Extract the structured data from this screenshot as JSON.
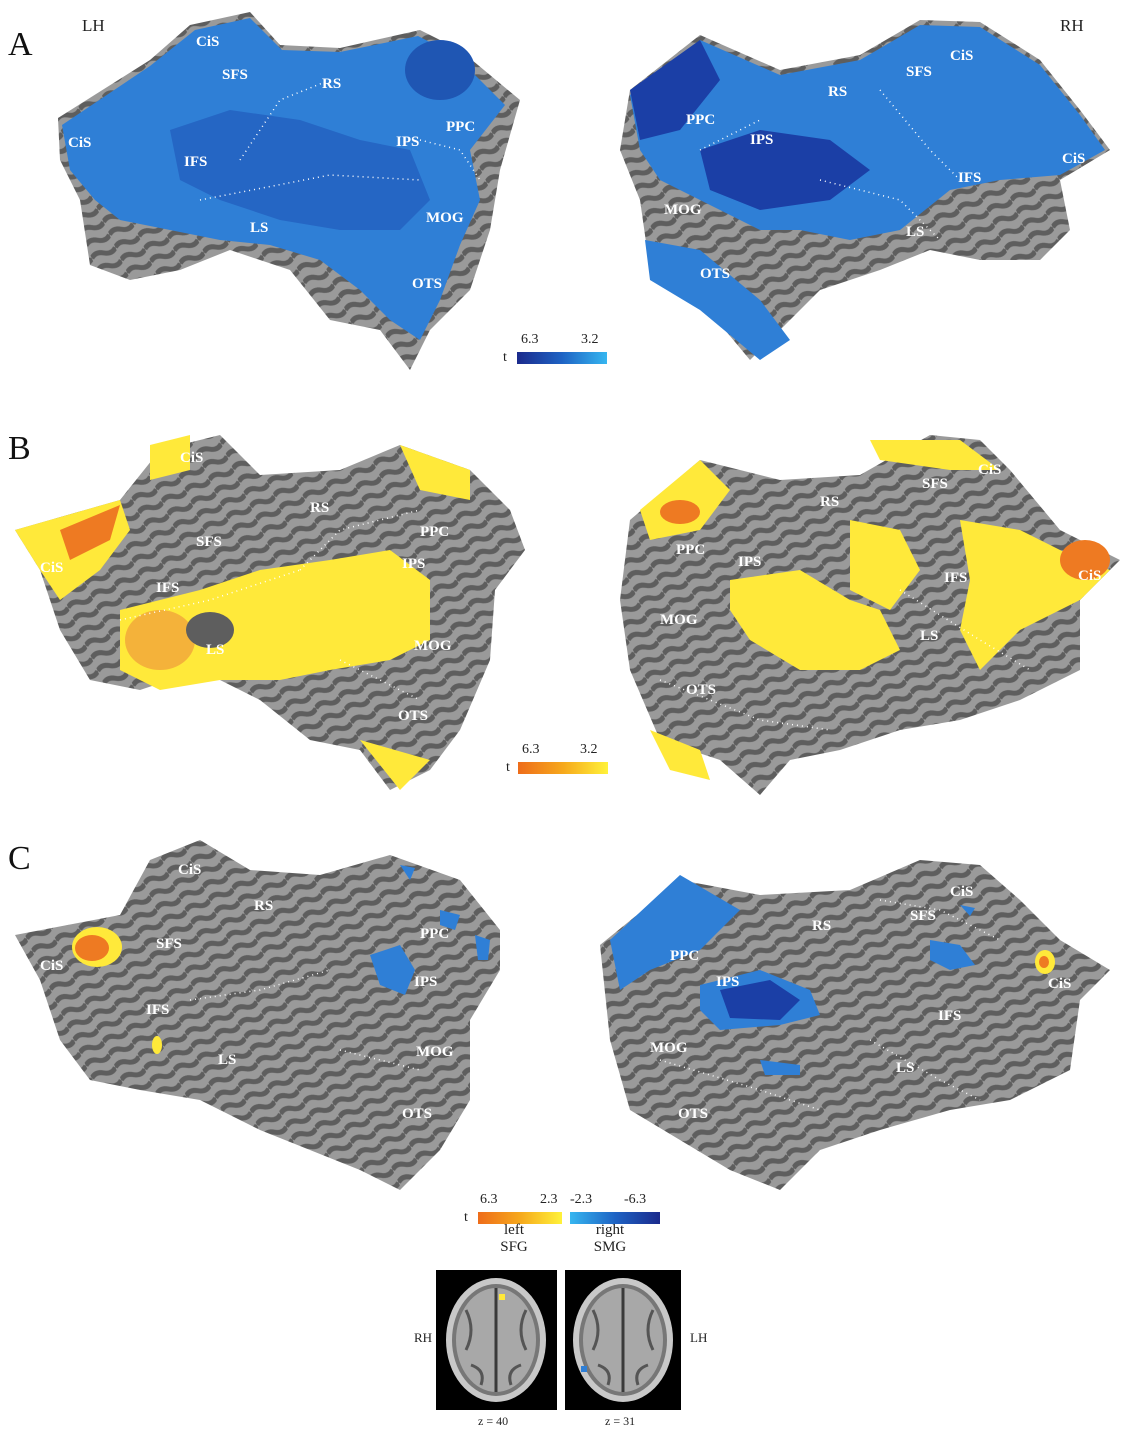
{
  "hemispheres": {
    "left": "LH",
    "right": "RH"
  },
  "panels": [
    {
      "label": "A",
      "left_sulci": [
        "CiS",
        "SFS",
        "RS",
        "CiS",
        "IFS",
        "IPS",
        "PPC",
        "LS",
        "MOG",
        "OTS"
      ],
      "right_sulci": [
        "CiS",
        "SFS",
        "RS",
        "PPC",
        "IPS",
        "CiS",
        "IFS",
        "MOG",
        "LS",
        "OTS"
      ],
      "colorbar": {
        "t": "t",
        "max": "6.3",
        "min": "3.2",
        "colors": [
          "#1b2a8c",
          "#1e63c4",
          "#36b6f0"
        ]
      }
    },
    {
      "label": "B",
      "left_sulci": [
        "CiS",
        "RS",
        "SFS",
        "PPC",
        "CiS",
        "IPS",
        "IFS",
        "LS",
        "MOG",
        "OTS"
      ],
      "right_sulci": [
        "CiS",
        "SFS",
        "RS",
        "PPC",
        "IPS",
        "IFS",
        "CiS",
        "MOG",
        "LS",
        "OTS"
      ],
      "colorbar": {
        "t": "t",
        "max": "6.3",
        "min": "3.2",
        "colors": [
          "#ee6c1a",
          "#f6a81c",
          "#fff23a"
        ]
      }
    },
    {
      "label": "C",
      "left_sulci": [
        "CiS",
        "RS",
        "SFS",
        "PPC",
        "CiS",
        "IFS",
        "IPS",
        "MOG",
        "LS",
        "OTS"
      ],
      "right_sulci": [
        "CiS",
        "SFS",
        "RS",
        "PPC",
        "IPS",
        "IFS",
        "CiS",
        "MOG",
        "LS",
        "OTS"
      ],
      "colorbar_pos": {
        "t": "t",
        "max": "6.3",
        "min": "2.3",
        "colors": [
          "#ee6c1a",
          "#f6a81c",
          "#fff23a"
        ]
      },
      "colorbar_neg": {
        "min": "-2.3",
        "max": "-6.3",
        "colors": [
          "#36b6f0",
          "#1e63c4",
          "#1b2a8c"
        ]
      },
      "roi_left": {
        "line1": "left",
        "line2": "SFG"
      },
      "roi_right": {
        "line1": "right",
        "line2": "SMG"
      },
      "axial_left_side": "RH",
      "axial_right_side": "LH",
      "z_left": "z = 40",
      "z_right": "z = 31"
    }
  ],
  "colors": {
    "cortex_light": "#9a9a9a",
    "cortex_dark": "#5e5e5e",
    "blue_activation": "#2f7fd6",
    "blue_deep": "#1b3fa6",
    "yellow_activation": "#ffe93a",
    "orange_activation": "#ee7a22"
  }
}
